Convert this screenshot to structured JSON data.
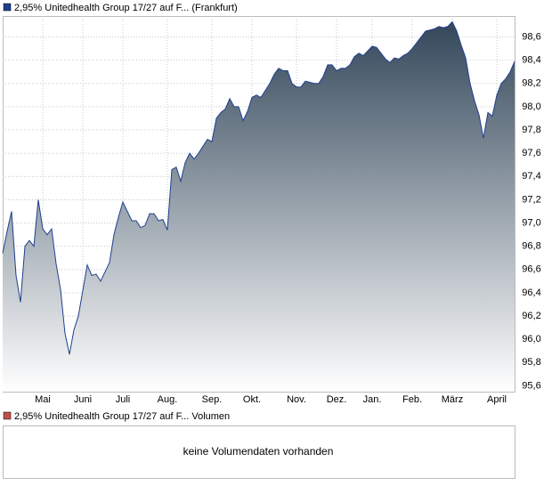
{
  "chart_data": {
    "type": "area",
    "series": [
      {
        "name": "2,95% Unitedhealth Group 17/27 auf F... (Frankfurt)",
        "color": "#1f3f8f",
        "values": [
          96.74,
          96.93,
          97.1,
          96.55,
          96.32,
          96.8,
          96.85,
          96.8,
          97.2,
          96.95,
          96.9,
          96.95,
          96.65,
          96.43,
          96.05,
          95.87,
          96.08,
          96.2,
          96.42,
          96.64,
          96.55,
          96.56,
          96.5,
          96.58,
          96.66,
          96.9,
          97.05,
          97.18,
          97.1,
          97.02,
          97.02,
          96.96,
          96.98,
          97.08,
          97.08,
          97.02,
          97.03,
          96.94,
          97.46,
          97.48,
          97.36,
          97.52,
          97.6,
          97.55,
          97.6,
          97.66,
          97.72,
          97.7,
          97.9,
          97.95,
          97.98,
          98.07,
          98.0,
          98.0,
          97.88,
          97.96,
          98.08,
          98.1,
          98.08,
          98.14,
          98.2,
          98.28,
          98.33,
          98.31,
          98.31,
          98.2,
          98.17,
          98.17,
          98.22,
          98.21,
          98.2,
          98.2,
          98.26,
          98.36,
          98.36,
          98.31,
          98.33,
          98.33,
          98.36,
          98.43,
          98.46,
          98.44,
          98.48,
          98.52,
          98.51,
          98.46,
          98.41,
          98.38,
          98.42,
          98.41,
          98.44,
          98.46,
          98.5,
          98.55,
          98.6,
          98.65,
          98.66,
          98.67,
          98.69,
          98.68,
          98.69,
          98.73,
          98.65,
          98.53,
          98.42,
          98.2,
          98.05,
          97.93,
          97.73,
          97.95,
          97.92,
          98.1,
          98.2,
          98.24,
          98.3,
          98.39
        ]
      }
    ],
    "categories": [
      null,
      null,
      null,
      null,
      null,
      null,
      null,
      null,
      null,
      "Mai",
      null,
      null,
      null,
      null,
      null,
      null,
      null,
      null,
      "Juni",
      null,
      null,
      null,
      null,
      null,
      null,
      null,
      null,
      "Juli",
      null,
      null,
      null,
      null,
      null,
      null,
      null,
      null,
      null,
      "Aug.",
      null,
      null,
      null,
      null,
      null,
      null,
      null,
      null,
      null,
      "Sep.",
      null,
      null,
      null,
      null,
      null,
      null,
      null,
      null,
      "Okt.",
      null,
      null,
      null,
      null,
      null,
      null,
      null,
      null,
      null,
      "Nov.",
      null,
      null,
      null,
      null,
      null,
      null,
      null,
      null,
      "Dez.",
      null,
      null,
      null,
      null,
      null,
      null,
      null,
      "Jan.",
      null,
      null,
      null,
      null,
      null,
      null,
      null,
      null,
      "Feb.",
      null,
      null,
      null,
      null,
      null,
      null,
      null,
      null,
      "März",
      null,
      null,
      null,
      null,
      null,
      null,
      null,
      null,
      null,
      "April",
      null,
      null,
      null,
      null
    ],
    "ylim": [
      95.55,
      98.78
    ],
    "yticks": [
      {
        "value": 95.6,
        "label": "95,6"
      },
      {
        "value": 95.8,
        "label": "95,8"
      },
      {
        "value": 96.0,
        "label": "96,0"
      },
      {
        "value": 96.2,
        "label": "96,2"
      },
      {
        "value": 96.4,
        "label": "96,4"
      },
      {
        "value": 96.6,
        "label": "96,6"
      },
      {
        "value": 96.8,
        "label": "96,8"
      },
      {
        "value": 97.0,
        "label": "97,0"
      },
      {
        "value": 97.2,
        "label": "97,2"
      },
      {
        "value": 97.4,
        "label": "97,4"
      },
      {
        "value": 97.6,
        "label": "97,6"
      },
      {
        "value": 97.8,
        "label": "97,8"
      },
      {
        "value": 98.0,
        "label": "98,0"
      },
      {
        "value": 98.2,
        "label": "98,2"
      },
      {
        "value": 98.4,
        "label": "98,4"
      },
      {
        "value": 98.6,
        "label": "98,6"
      }
    ],
    "grid": true
  },
  "volume_panel": {
    "legend": "2,95% Unitedhealth Group 17/27 auf F... Volumen",
    "color": "#c0504d",
    "message": "keine Volumendaten vorhanden"
  }
}
